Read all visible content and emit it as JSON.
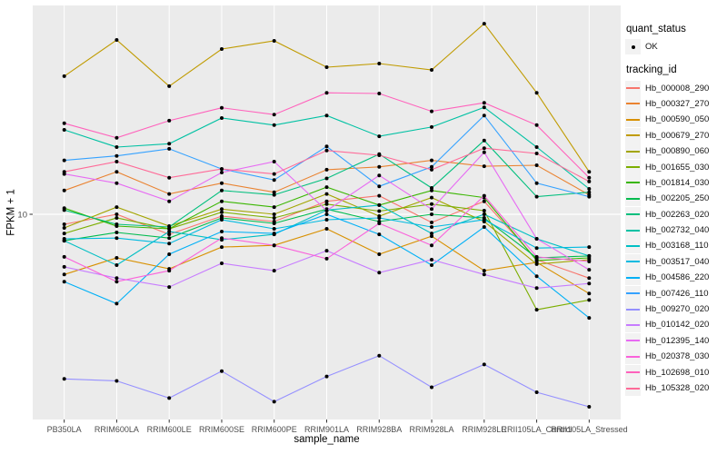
{
  "figure": {
    "xlabel": "sample_name",
    "ylabel": "FPKM + 1"
  },
  "legend": {
    "quant_status_title": "quant_status",
    "quant_status_items": [
      {
        "label": "OK",
        "marker": "point-icon",
        "color": "#000000"
      }
    ],
    "tracking_title": "tracking_id"
  },
  "colors": {
    "page_bg": "#FFFFFF",
    "panel_bg": "#EBEBEB",
    "grid": "#FFFFFF",
    "legend_key_bg": "#F2F2F2",
    "tick_label": "#4D4D4D",
    "tick_mark": "#333333",
    "point": "#000000"
  },
  "chart_data": {
    "type": "line",
    "title": "",
    "xlabel": "sample_name",
    "ylabel": "FPKM + 1",
    "x_categories": [
      "PB350LA",
      "RRIM600LA",
      "RRIM600LE",
      "RRIM600SE",
      "RRIM600PE",
      "RRIM901LA",
      "RRIM928BA",
      "RRIM928LA",
      "RRIM928LE",
      "RRII105LA_Control",
      "RRII105LA_Stressed"
    ],
    "y_scale": "log10",
    "ylim": [
      1.455,
      71.1
    ],
    "y_ticks": [
      10
    ],
    "grid": "major",
    "legend_position": "right",
    "marker": "black-point",
    "series": [
      {
        "name": "Hb_000008_290",
        "color": "#F8766D",
        "values": [
          9.1,
          10,
          8.28,
          9.83,
          9.34,
          11.3,
          11.9,
          9.26,
          11.3,
          6.53,
          5.49
        ]
      },
      {
        "name": "Hb_000327_270",
        "color": "#EA8331",
        "values": [
          12.5,
          14.9,
          12.1,
          13.4,
          12.3,
          15.2,
          15.6,
          16.6,
          15.7,
          15.85,
          12
        ]
      },
      {
        "name": "Hb_000590_050",
        "color": "#D89000",
        "values": [
          5.68,
          6.64,
          5.99,
          7.35,
          7.47,
          8.72,
          6.87,
          8.14,
          5.89,
          6.37,
          4.75
        ]
      },
      {
        "name": "Hb_000679_270",
        "color": "#C09B00",
        "values": [
          36.6,
          51.4,
          33.3,
          47.2,
          51,
          39.8,
          41.2,
          38.8,
          59.9,
          31.3,
          14.9
        ]
      },
      {
        "name": "Hb_000890_060",
        "color": "#A3A500",
        "values": [
          8.8,
          10.7,
          8.95,
          10.5,
          10,
          12.1,
          9.83,
          11.7,
          9.34,
          6.26,
          6.53
        ]
      },
      {
        "name": "Hb_001655_030",
        "color": "#7CAE00",
        "values": [
          8.35,
          9.66,
          8.72,
          10.2,
          9.66,
          11,
          10.3,
          11,
          10.35,
          4.08,
          4.47
        ]
      },
      {
        "name": "Hb_001814_030",
        "color": "#39B600",
        "values": [
          10.6,
          8.95,
          8.72,
          11.3,
          10.7,
          12.9,
          10.9,
          12.5,
          11.7,
          6.48,
          6.64
        ]
      },
      {
        "name": "Hb_002205_250",
        "color": "#00BB4E",
        "values": [
          7.8,
          8.43,
          8,
          9.66,
          9.18,
          10.5,
          9.34,
          10,
          9.66,
          6.64,
          6.76
        ]
      },
      {
        "name": "Hb_002263_020",
        "color": "#00BF7D",
        "values": [
          10.4,
          9.1,
          8.87,
          12.5,
          12,
          14,
          17.6,
          12.8,
          20,
          11.8,
          12.3
        ]
      },
      {
        "name": "Hb_002732_040",
        "color": "#00C1A3",
        "values": [
          22.1,
          18.8,
          19.4,
          24.7,
          23.1,
          25.3,
          20.8,
          22.7,
          27.3,
          18.8,
          12.7
        ]
      },
      {
        "name": "Hb_003168_110",
        "color": "#00BFC4",
        "values": [
          7.8,
          6.2,
          8.5,
          7.87,
          8.28,
          10.4,
          10.9,
          8.35,
          10,
          7.94,
          6.76
        ]
      },
      {
        "name": "Hb_003517_040",
        "color": "#00BAE0",
        "values": [
          7.94,
          8,
          7.6,
          9.5,
          8.72,
          9.5,
          9.66,
          8.87,
          9.5,
          7.28,
          7.35
        ]
      },
      {
        "name": "Hb_004586_220",
        "color": "#00B0F6",
        "values": [
          5.31,
          4.32,
          6.87,
          8.5,
          8.35,
          10,
          8.28,
          6.2,
          8.87,
          5.59,
          3.78
        ]
      },
      {
        "name": "Hb_007426_110",
        "color": "#35A2FF",
        "values": [
          16.6,
          17.3,
          18.5,
          15.3,
          13.8,
          18.9,
          13,
          15.6,
          25.3,
          13.4,
          11.8
        ]
      },
      {
        "name": "Hb_009270_020",
        "color": "#9590FF",
        "values": [
          2.13,
          2.09,
          1.78,
          2.29,
          1.72,
          2.18,
          2.65,
          1.97,
          2.44,
          1.88,
          1.64
        ]
      },
      {
        "name": "Hb_010142_020",
        "color": "#C77CFF",
        "values": [
          6.1,
          5.49,
          5.05,
          6.31,
          5.89,
          7.1,
          5.78,
          6.53,
          5.68,
          5,
          5.22
        ]
      },
      {
        "name": "Hb_012395_140",
        "color": "#E76BF3",
        "values": [
          14.6,
          13.4,
          11.3,
          14.8,
          16.4,
          10.35,
          14.4,
          10.5,
          17.9,
          7.94,
          5.94
        ]
      },
      {
        "name": "Hb_020378_030",
        "color": "#FA62DB",
        "values": [
          6.7,
          5.31,
          5.89,
          8,
          7.47,
          6.59,
          9.18,
          7.47,
          11.9,
          6.7,
          6.42
        ]
      },
      {
        "name": "Hb_102698_010",
        "color": "#FF62BC",
        "values": [
          23.5,
          20.5,
          24.1,
          27.2,
          25.5,
          31.3,
          31.1,
          26.3,
          28.5,
          23.1,
          14.1
        ]
      },
      {
        "name": "Hb_105328_020",
        "color": "#FF6A98",
        "values": [
          14.9,
          16.4,
          14.1,
          15.3,
          14.6,
          18.2,
          17.4,
          15.2,
          18.6,
          17.7,
          13.6
        ]
      }
    ]
  }
}
